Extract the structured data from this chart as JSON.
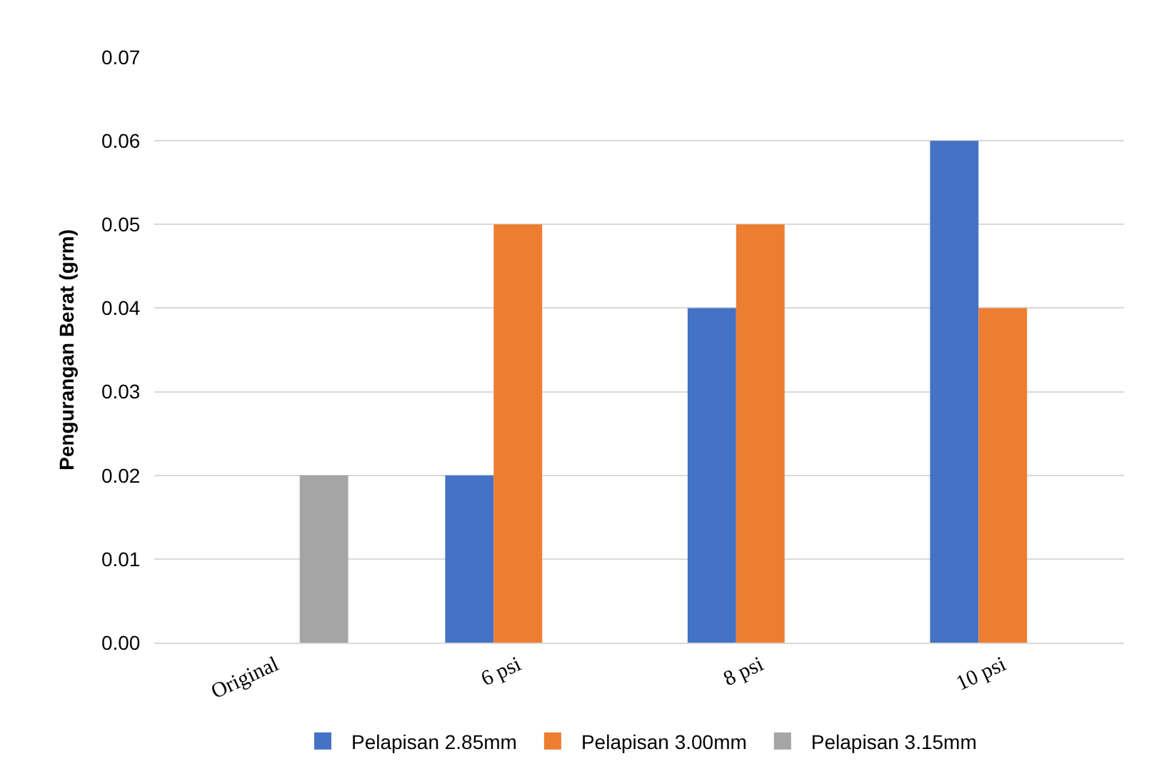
{
  "chart_data": {
    "type": "bar",
    "ylabel": "Pengurangan Berat (grm)",
    "categories": [
      "Original",
      "6 psi",
      "8 psi",
      "10 psi"
    ],
    "series": [
      {
        "name": "Pelapisan 2.85mm",
        "color": "#4472c4",
        "values": [
          null,
          0.02,
          0.04,
          0.06
        ]
      },
      {
        "name": "Pelapisan 3.00mm",
        "color": "#ed7d31",
        "values": [
          null,
          0.05,
          0.05,
          0.04
        ]
      },
      {
        "name": "Pelapisan 3.15mm",
        "color": "#a5a5a5",
        "values": [
          0.02,
          null,
          null,
          null
        ]
      }
    ],
    "ylim": [
      0,
      0.07
    ],
    "yticks": [
      {
        "value": 0,
        "label": "0.00"
      },
      {
        "value": 0.01,
        "label": "0.01"
      },
      {
        "value": 0.02,
        "label": "0.02"
      },
      {
        "value": 0.03,
        "label": "0.03"
      },
      {
        "value": 0.04,
        "label": "0.04"
      },
      {
        "value": 0.05,
        "label": "0.05"
      },
      {
        "value": 0.06,
        "label": "0.06"
      },
      {
        "value": 0.07,
        "label": "0.07"
      }
    ],
    "grid": "y",
    "legend": "bottom"
  }
}
